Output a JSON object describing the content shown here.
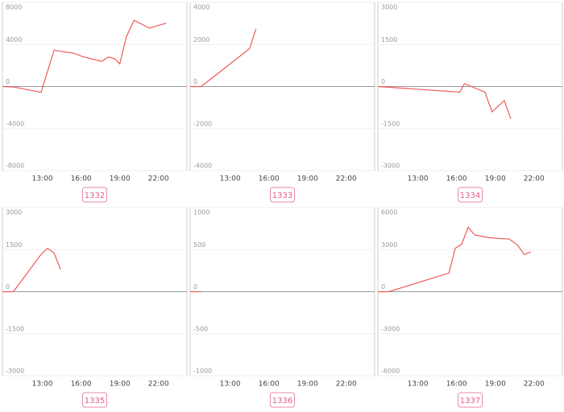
{
  "chart_data": [
    {
      "type": "line",
      "label": "1332",
      "color": "#f05a5a",
      "xlim": [
        9.9,
        24.2
      ],
      "ylim": [
        -8000,
        8000
      ],
      "xticks": [
        {
          "value": 13,
          "label": "13:00"
        },
        {
          "value": 16,
          "label": "16:00"
        },
        {
          "value": 19,
          "label": "19:00"
        },
        {
          "value": 22,
          "label": "22:00"
        }
      ],
      "yticks": [
        -8000,
        -4000,
        0,
        4000,
        8000
      ],
      "x": [
        9.9,
        10.8,
        12.9,
        13.9,
        15.5,
        16.1,
        17.6,
        18.1,
        18.6,
        19,
        19.5,
        20.1,
        21.3,
        22.2,
        22.6
      ],
      "values": [
        0,
        -50,
        -550,
        3450,
        3150,
        2850,
        2400,
        2800,
        2650,
        2150,
        4700,
        6300,
        5550,
        5900,
        6000
      ]
    },
    {
      "type": "line",
      "label": "1333",
      "color": "#f05a5a",
      "xlim": [
        9.9,
        24.2
      ],
      "ylim": [
        -4000,
        4000
      ],
      "xticks": [
        {
          "value": 13,
          "label": "13:00"
        },
        {
          "value": 16,
          "label": "16:00"
        },
        {
          "value": 19,
          "label": "19:00"
        },
        {
          "value": 22,
          "label": "22:00"
        }
      ],
      "yticks": [
        -4000,
        -2000,
        0,
        2000,
        4000
      ],
      "x": [
        9.9,
        10.75,
        14.5,
        15.0
      ],
      "values": [
        0,
        0,
        1800,
        2750
      ]
    },
    {
      "type": "line",
      "label": "1334",
      "color": "#f05a5a",
      "xlim": [
        9.9,
        24.2
      ],
      "ylim": [
        -3000,
        3000
      ],
      "xticks": [
        {
          "value": 13,
          "label": "13:00"
        },
        {
          "value": 16,
          "label": "16:00"
        },
        {
          "value": 19,
          "label": "19:00"
        },
        {
          "value": 22,
          "label": "22:00"
        }
      ],
      "yticks": [
        -3000,
        -1500,
        0,
        1500,
        3000
      ],
      "x": [
        9.9,
        16.25,
        16.6,
        18.2,
        18.75,
        19.7,
        20.2
      ],
      "values": [
        0,
        -200,
        100,
        -200,
        -900,
        -500,
        -1150
      ]
    },
    {
      "type": "line",
      "label": "1335",
      "color": "#f05a5a",
      "xlim": [
        9.9,
        24.2
      ],
      "ylim": [
        -3000,
        3000
      ],
      "xticks": [
        {
          "value": 13,
          "label": "13:00"
        },
        {
          "value": 16,
          "label": "16:00"
        },
        {
          "value": 19,
          "label": "19:00"
        },
        {
          "value": 22,
          "label": "22:00"
        }
      ],
      "yticks": [
        -3000,
        -1500,
        0,
        1500,
        3000
      ],
      "x": [
        9.9,
        10.75,
        12.9,
        13.4,
        13.9,
        14.4
      ],
      "values": [
        0,
        0,
        1330,
        1550,
        1380,
        800
      ]
    },
    {
      "type": "line",
      "label": "1336",
      "color": "#f05a5a",
      "xlim": [
        9.9,
        24.2
      ],
      "ylim": [
        -1000,
        1000
      ],
      "xticks": [
        {
          "value": 13,
          "label": "13:00"
        },
        {
          "value": 16,
          "label": "16:00"
        },
        {
          "value": 19,
          "label": "19:00"
        },
        {
          "value": 22,
          "label": "22:00"
        }
      ],
      "yticks": [
        -1000,
        -500,
        0,
        500,
        1000
      ],
      "x": [
        9.9,
        10.75
      ],
      "values": [
        0,
        0
      ]
    },
    {
      "type": "line",
      "label": "1337",
      "color": "#f05a5a",
      "xlim": [
        9.9,
        24.2
      ],
      "ylim": [
        -6000,
        6000
      ],
      "xticks": [
        {
          "value": 13,
          "label": "13:00"
        },
        {
          "value": 16,
          "label": "16:00"
        },
        {
          "value": 19,
          "label": "19:00"
        },
        {
          "value": 22,
          "label": "22:00"
        }
      ],
      "yticks": [
        -6000,
        -3000,
        0,
        3000,
        6000
      ],
      "x": [
        9.9,
        10.75,
        15.4,
        15.9,
        16.4,
        16.9,
        17.4,
        18.5,
        20.1,
        20.7,
        21.25,
        21.75
      ],
      "values": [
        0,
        0,
        1330,
        3100,
        3400,
        4600,
        4050,
        3850,
        3750,
        3350,
        2650,
        2850
      ]
    }
  ]
}
